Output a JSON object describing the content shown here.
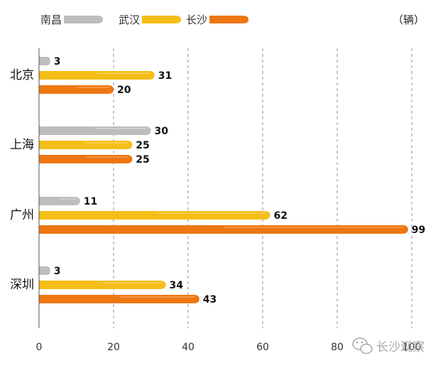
{
  "chart_data": {
    "type": "bar",
    "orientation": "horizontal",
    "unit_label": "（辆）",
    "categories": [
      "北京",
      "上海",
      "广州",
      "深圳"
    ],
    "series": [
      {
        "name": "南昌",
        "values": [
          3,
          30,
          11,
          3
        ],
        "color": "#bdbdbd"
      },
      {
        "name": "武汉",
        "values": [
          31,
          25,
          62,
          34
        ],
        "color": "#f5be16"
      },
      {
        "name": "长沙",
        "values": [
          20,
          25,
          99,
          43
        ],
        "color": "#ee7610"
      }
    ],
    "xlim": [
      0,
      100
    ],
    "xticks": [
      0,
      20,
      40,
      60,
      80,
      100
    ],
    "grid": "vertical dashed",
    "legend_position": "top"
  },
  "watermark": {
    "text": "长沙观察",
    "icon": "wechat-icon"
  }
}
